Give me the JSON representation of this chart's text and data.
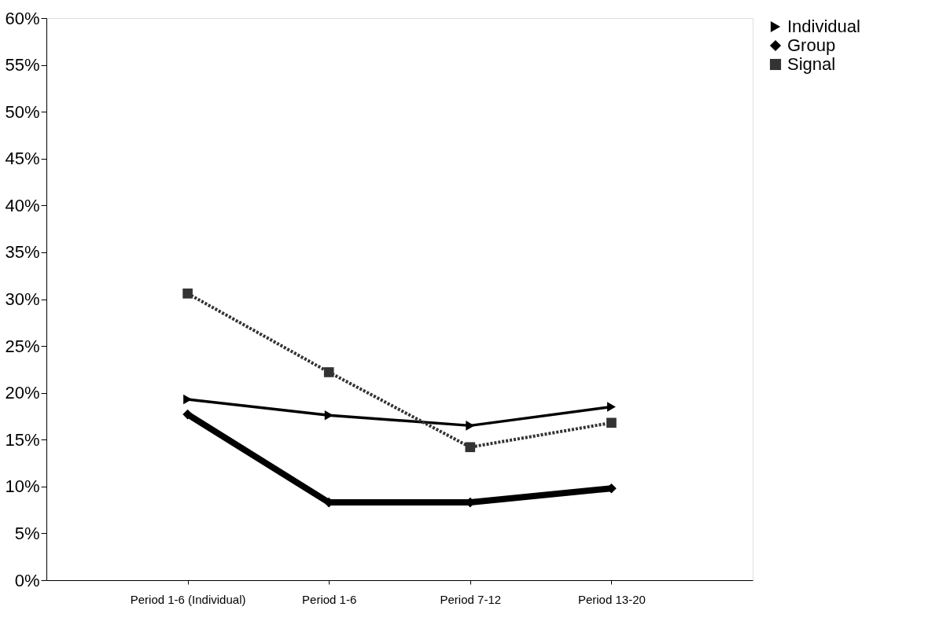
{
  "chart_data": {
    "type": "line",
    "categories": [
      "Period 1-6 (Individual)",
      "Period 1-6",
      "Period 7-12",
      "Period 13-20"
    ],
    "series": [
      {
        "name": "Individual",
        "color": "#000000",
        "marker": "triangle",
        "line_style": "solid",
        "values": [
          19.3,
          17.6,
          16.5,
          18.5
        ]
      },
      {
        "name": "Group",
        "color": "#000000",
        "marker": "diamond",
        "line_style": "solid",
        "values": [
          17.7,
          8.3,
          8.3,
          9.8
        ]
      },
      {
        "name": "Signal",
        "color": "#333333",
        "marker": "square",
        "line_style": "dotted",
        "values": [
          30.6,
          22.2,
          14.2,
          16.8
        ]
      }
    ],
    "ylim": [
      0,
      60
    ],
    "yticks": [
      {
        "value": 0,
        "label": "0%"
      },
      {
        "value": 5,
        "label": "5%"
      },
      {
        "value": 10,
        "label": "10%"
      },
      {
        "value": 15,
        "label": "15%"
      },
      {
        "value": 20,
        "label": "20%"
      },
      {
        "value": 25,
        "label": "25%"
      },
      {
        "value": 30,
        "label": "30%"
      },
      {
        "value": 35,
        "label": "35%"
      },
      {
        "value": 40,
        "label": "40%"
      },
      {
        "value": 45,
        "label": "45%"
      },
      {
        "value": 50,
        "label": "50%"
      },
      {
        "value": 55,
        "label": "55%"
      },
      {
        "value": 60,
        "label": "60%"
      }
    ],
    "grid": false,
    "legend": "right"
  }
}
